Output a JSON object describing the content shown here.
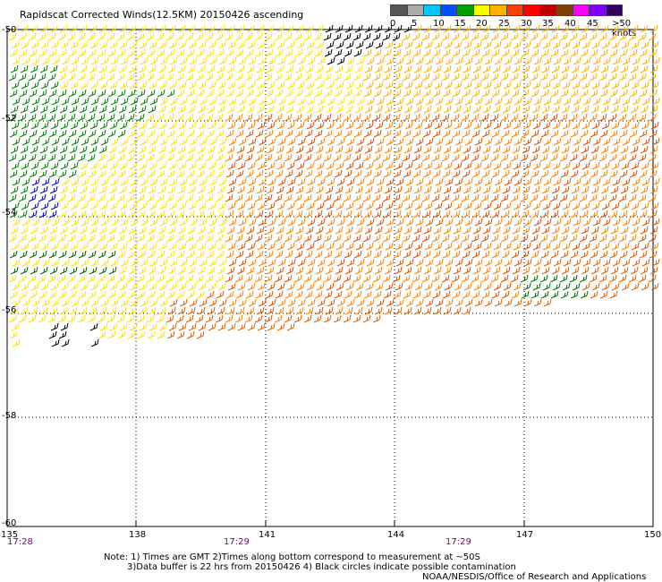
{
  "title": "Rapidscat Corrected Winds(12.5KM) 20150426 ascending",
  "legend": {
    "ticks": [
      "0",
      "5",
      "10",
      "15",
      "20",
      "25",
      "30",
      "35",
      "40",
      "45",
      ">50 knots"
    ],
    "colors": [
      "#555555",
      "#aaaaaa",
      "#00c8ff",
      "#0050ff",
      "#00a000",
      "#ffff00",
      "#ffb000",
      "#ff4000",
      "#ff0000",
      "#c00000",
      "#804000",
      "#ff00ff",
      "#8000ff",
      "#300060"
    ]
  },
  "axes": {
    "lat_labels": [
      "-50",
      "-52",
      "-54",
      "-56",
      "-58",
      "-60"
    ],
    "lon_labels": [
      "135",
      "138",
      "141",
      "144",
      "147",
      "150"
    ],
    "time_labels": [
      "17:28",
      "17:29",
      "17:29"
    ]
  },
  "notes": {
    "line1": "Note: 1) Times are GMT 2)Times along bottom correspond to measurement at ~50S",
    "line2": "3)Data buffer is 22 hrs from 20150426 4) Black circles indicate possible contamination",
    "credit": "NOAA/NESDIS/Office of Research and Applications"
  },
  "map_data": {
    "lat_range": [
      -60,
      -50
    ],
    "lon_range": [
      135,
      150
    ],
    "grid": "dotted",
    "wind_regions": [
      {
        "label": "light-yellow",
        "color": "#ffff00"
      },
      {
        "label": "orange-yellow",
        "color": "#ffc000"
      },
      {
        "label": "orange",
        "color": "#ff8000"
      },
      {
        "label": "dark-orange",
        "color": "#e05000"
      },
      {
        "label": "green",
        "color": "#00a000"
      },
      {
        "label": "blue",
        "color": "#0000ff"
      },
      {
        "label": "black",
        "color": "#000000"
      }
    ]
  }
}
